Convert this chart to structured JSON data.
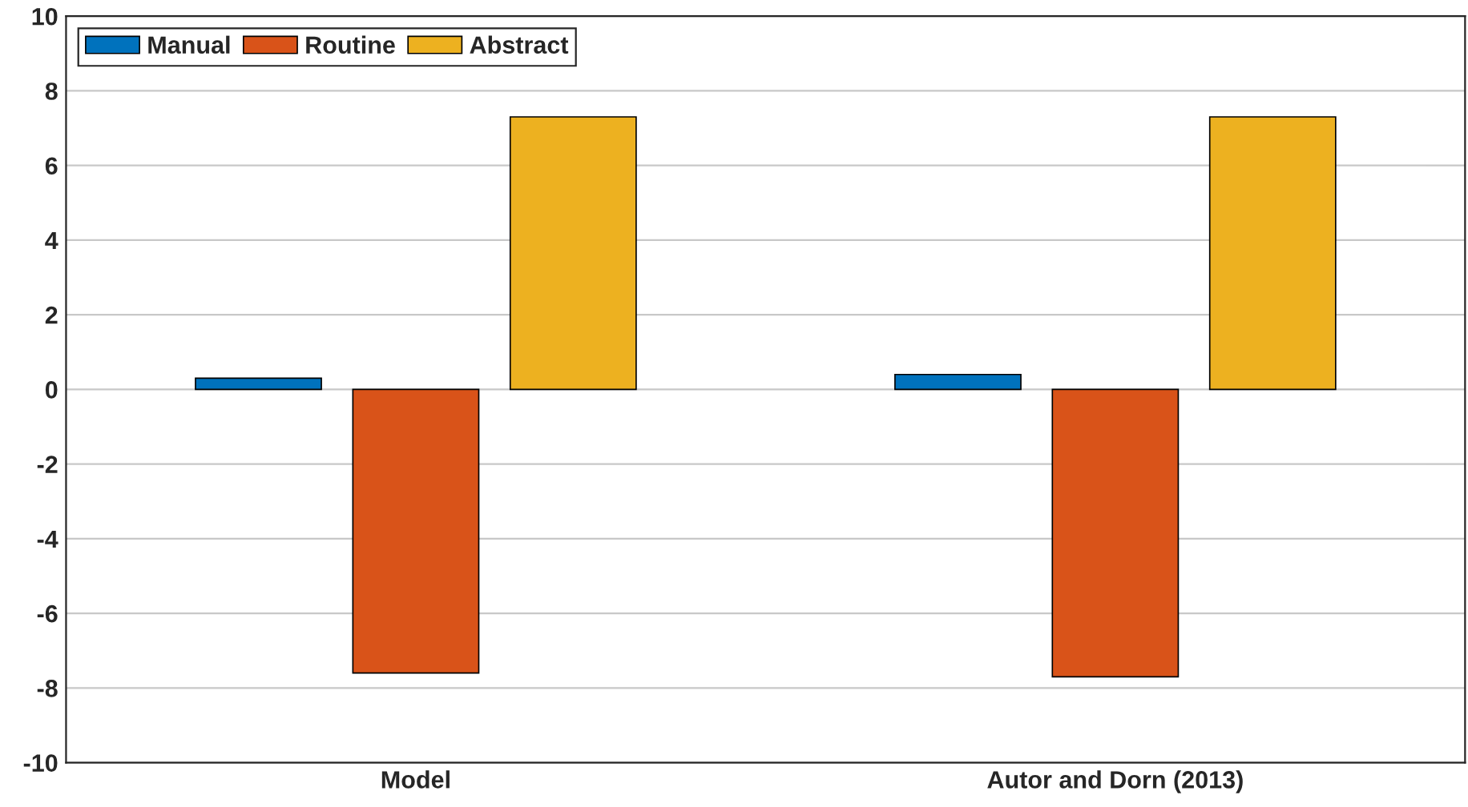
{
  "chart_data": {
    "type": "bar",
    "categories": [
      "Model",
      "Autor and Dorn (2013)"
    ],
    "series": [
      {
        "name": "Manual",
        "color": "#0072bd",
        "values": [
          0.3,
          0.4
        ]
      },
      {
        "name": "Routine",
        "color": "#d95319",
        "values": [
          -7.6,
          -7.7
        ]
      },
      {
        "name": "Abstract",
        "color": "#edb120",
        "values": [
          7.3,
          7.3
        ]
      }
    ],
    "ylim": [
      -10,
      10
    ],
    "yticks": [
      -10,
      -8,
      -6,
      -4,
      -2,
      0,
      2,
      4,
      6,
      8,
      10
    ],
    "grid": "y",
    "legend": "top left"
  }
}
